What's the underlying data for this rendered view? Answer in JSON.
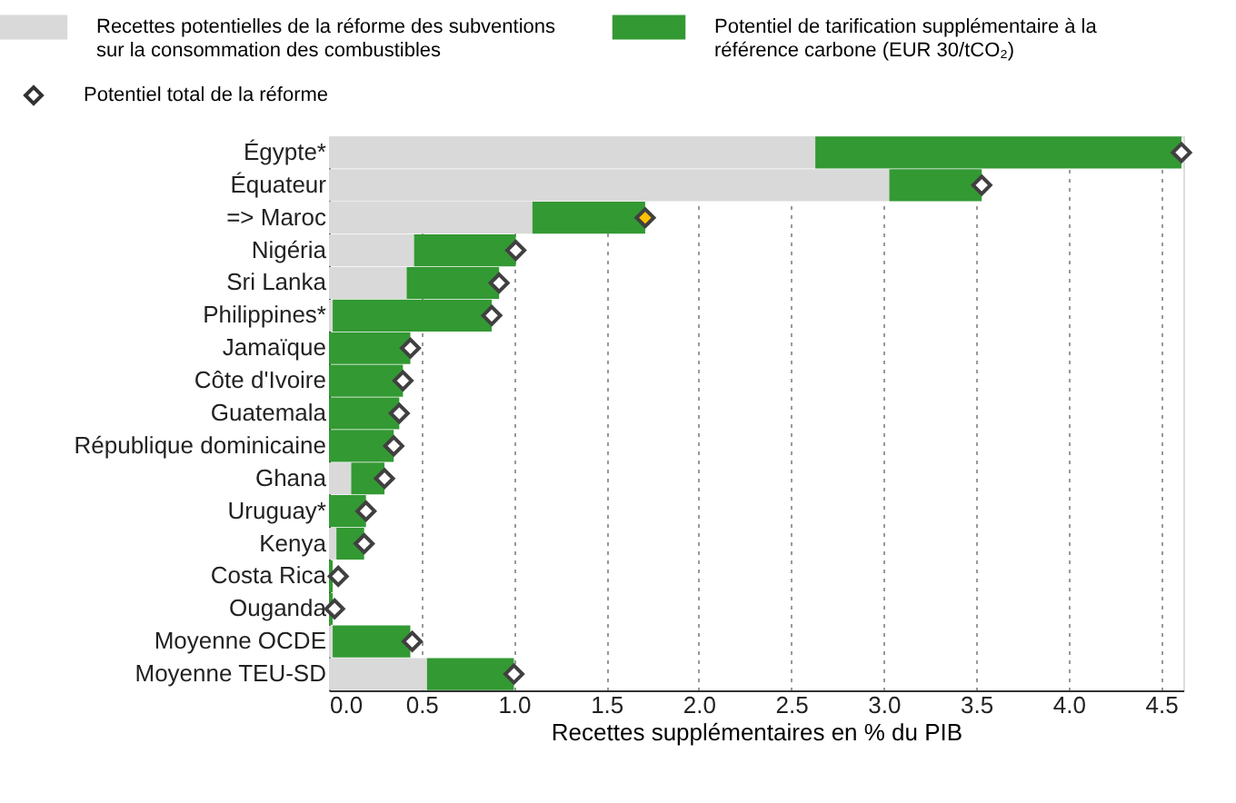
{
  "chart_data": {
    "type": "bar",
    "orientation": "horizontal",
    "stacked": true,
    "xlabel": "Recettes supplémentaires en % du PIB",
    "categories": [
      "Égypte*",
      "Équateur",
      "=> Maroc",
      "Nigéria",
      "Sri Lanka",
      "Philippines*",
      "Jamaïque",
      "Côte d'Ivoire",
      "Guatemala",
      "République dominicaine",
      "Ghana",
      "Uruguay*",
      "Kenya",
      "Costa Rica",
      "Ouganda",
      "Moyenne OCDE",
      "Moyenne TEU-SD"
    ],
    "series": [
      {
        "name": "Recettes potentielles de la réforme des subventions sur la consommation des combustibles",
        "color": "#d9d9d9",
        "values": [
          2.63,
          3.03,
          1.1,
          0.46,
          0.42,
          0.02,
          null,
          null,
          null,
          null,
          0.12,
          null,
          0.04,
          null,
          null,
          0.02,
          0.53
        ]
      },
      {
        "name": "Potentiel de tarification supplémentaire à la référence carbone (EUR 30/tCO₂)",
        "color": "#339933",
        "values": [
          1.98,
          0.5,
          0.61,
          0.55,
          0.5,
          0.86,
          0.44,
          0.4,
          0.38,
          0.35,
          0.18,
          0.2,
          0.15,
          0.02,
          0.02,
          0.42,
          0.47
        ]
      },
      {
        "name": "Potentiel total de la réforme",
        "type": "scatter",
        "marker": "diamond",
        "color": "#ffffff",
        "colors": [
          "#ffffff",
          "#ffffff",
          "#ffc000",
          "#ffffff",
          "#ffffff",
          "#ffffff",
          "#ffffff",
          "#ffffff",
          "#ffffff",
          "#ffffff",
          "#ffffff",
          "#ffffff",
          "#ffffff",
          "#ffffff",
          "#ffffff",
          "#ffffff",
          "#ffffff"
        ],
        "values": [
          4.61,
          3.53,
          1.71,
          1.01,
          0.92,
          0.88,
          0.44,
          0.4,
          0.38,
          0.35,
          0.3,
          0.2,
          0.19,
          0.05,
          0.03,
          0.45,
          1.0
        ]
      }
    ],
    "xlim": [
      0,
      4.62
    ],
    "xticks": [
      {
        "value": 0,
        "label": "0.0"
      },
      {
        "value": 0.5,
        "label": "0.5"
      },
      {
        "value": 1,
        "label": "1.0"
      },
      {
        "value": 1.5,
        "label": "1.5"
      },
      {
        "value": 2,
        "label": "2.0"
      },
      {
        "value": 2.5,
        "label": "2.5"
      },
      {
        "value": 3,
        "label": "3.0"
      },
      {
        "value": 3.5,
        "label": "3.5"
      },
      {
        "value": 4,
        "label": "4.0"
      },
      {
        "value": 4.5,
        "label": "4.5"
      }
    ],
    "grid": "x",
    "legend": "top"
  }
}
